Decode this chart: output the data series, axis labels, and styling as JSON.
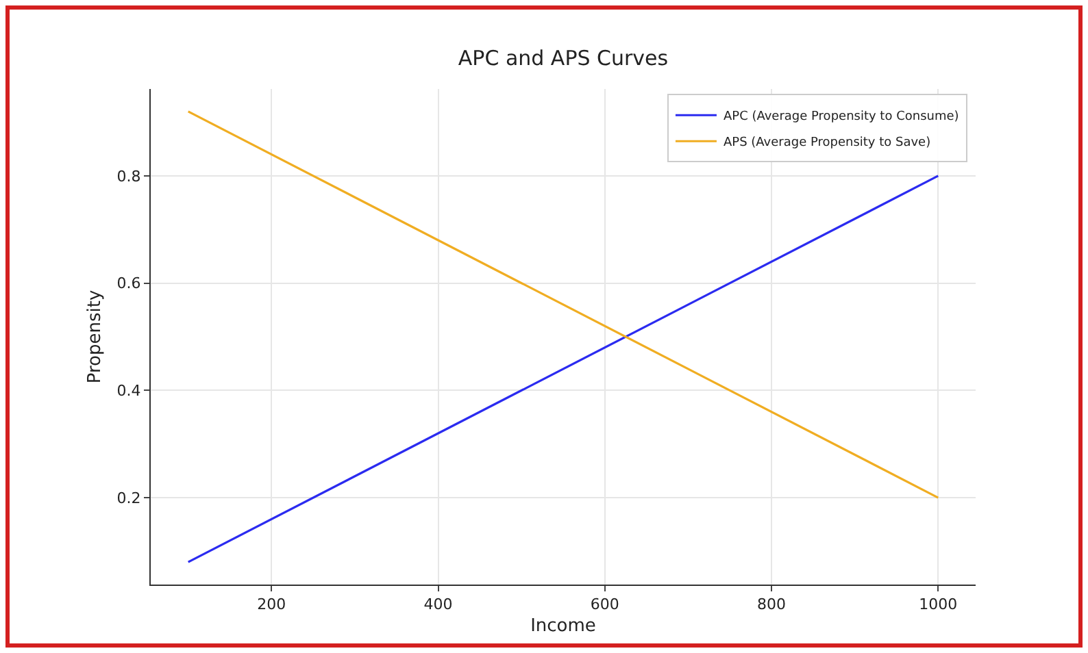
{
  "chart_data": {
    "type": "line",
    "title": "APC and APS Curves",
    "xlabel": "Income",
    "ylabel": "Propensity",
    "x": [
      100,
      1000
    ],
    "series": [
      {
        "name": "APC (Average Propensity to Consume)",
        "color": "#2b2bf0",
        "values": [
          0.08,
          0.8
        ]
      },
      {
        "name": "APS (Average Propensity to Save)",
        "color": "#f0ad22",
        "values": [
          0.92,
          0.2
        ]
      }
    ],
    "xlim": [
      55,
      1045
    ],
    "xticks": [
      200,
      400,
      600,
      800,
      1000
    ],
    "ylim": [
      0.038,
      0.962
    ],
    "yticks": [
      0.2,
      0.4,
      0.6,
      0.8
    ],
    "grid": true,
    "legend": "top right",
    "marker": "none",
    "line_style": "solid"
  }
}
